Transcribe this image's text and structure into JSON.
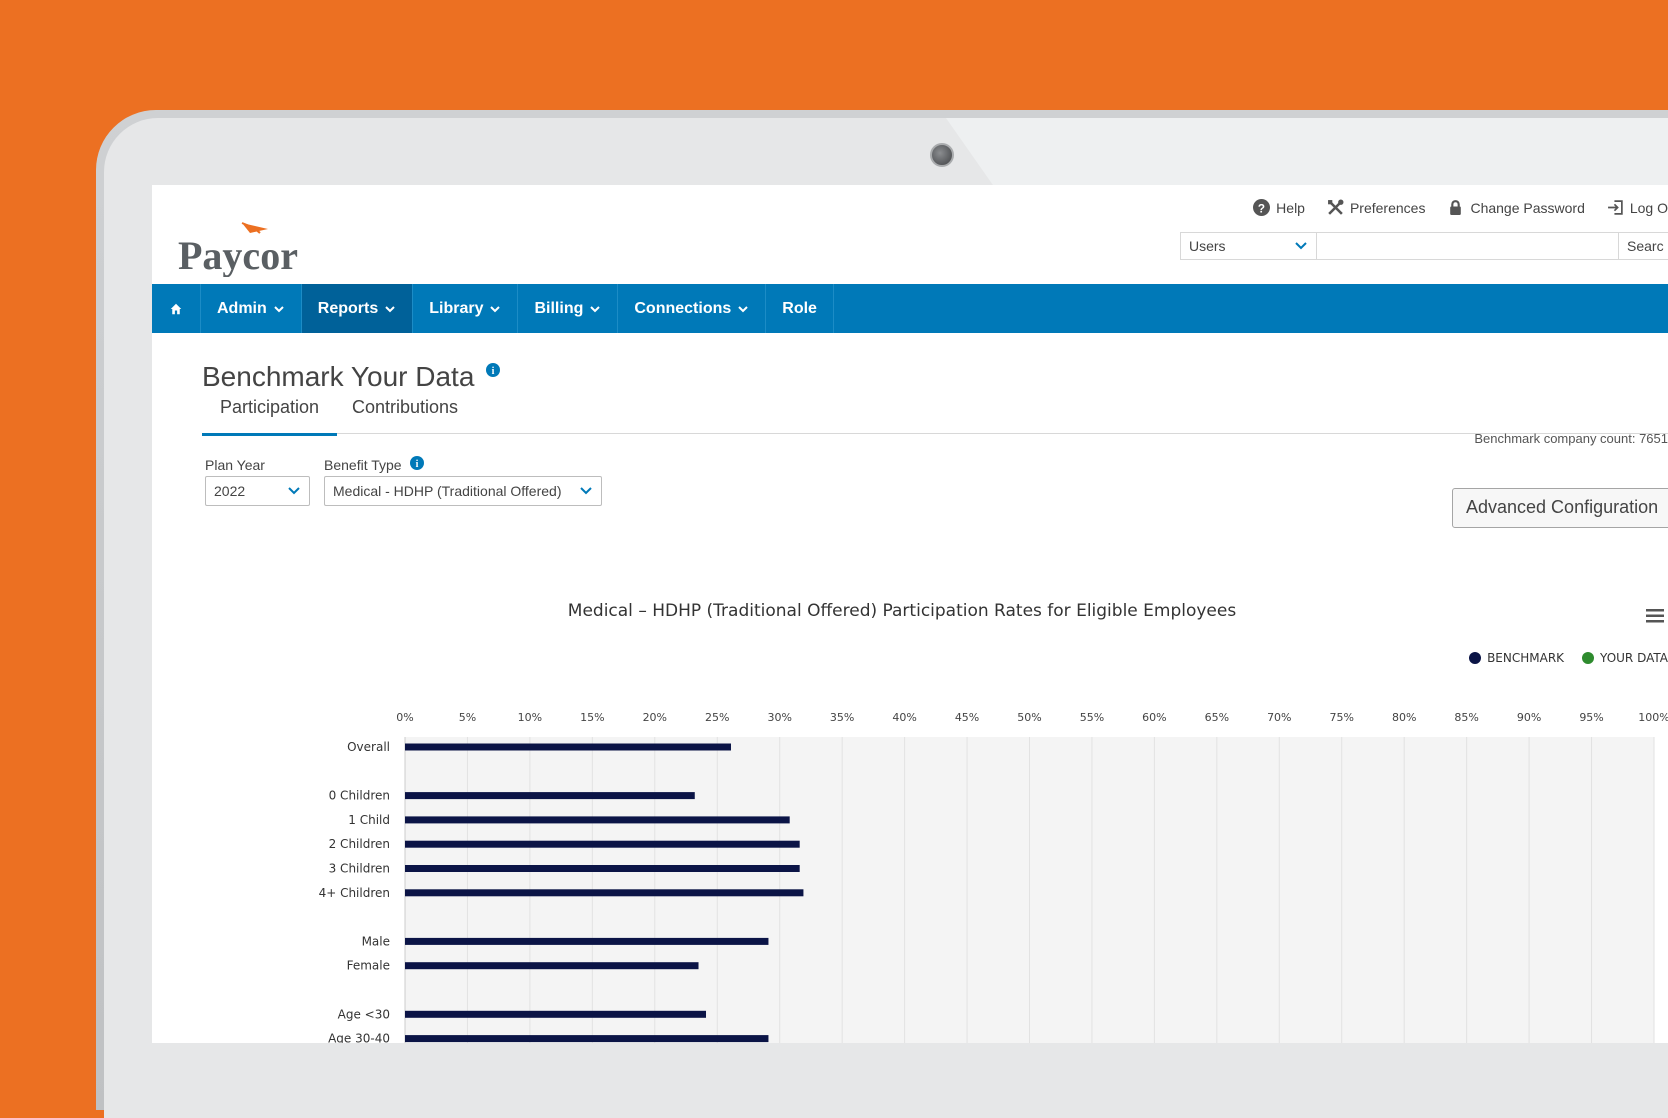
{
  "brand": {
    "name": "Paycor"
  },
  "top_links": [
    {
      "label": "Help",
      "icon": "help-icon"
    },
    {
      "label": "Preferences",
      "icon": "tools-icon"
    },
    {
      "label": "Change Password",
      "icon": "lock-icon"
    },
    {
      "label": "Log O",
      "icon": "logout-icon"
    }
  ],
  "search": {
    "scope": "Users",
    "button": "Searc"
  },
  "nav": {
    "items": [
      {
        "label": "Admin",
        "dropdown": true
      },
      {
        "label": "Reports",
        "dropdown": true,
        "active": true
      },
      {
        "label": "Library",
        "dropdown": true
      },
      {
        "label": "Billing",
        "dropdown": true
      },
      {
        "label": "Connections",
        "dropdown": true
      },
      {
        "label": "Role",
        "dropdown": false
      }
    ]
  },
  "page": {
    "title": "Benchmark Your Data",
    "tabs": [
      "Participation",
      "Contributions"
    ],
    "company_count": "Benchmark company count: 7651"
  },
  "filters": {
    "plan_year_label": "Plan Year",
    "plan_year_value": "2022",
    "benefit_type_label": "Benefit Type",
    "benefit_type_value": "Medical - HDHP (Traditional Offered)",
    "advanced_button": "Advanced Configuration"
  },
  "colors": {
    "accent": "#0079b8",
    "benchmark": "#0b1446",
    "your_data": "#2e8b2e"
  },
  "chart_data": {
    "type": "bar",
    "orientation": "horizontal",
    "title": "Medical – HDHP (Traditional Offered) Participation Rates for Eligible Employees",
    "legend": [
      "BENCHMARK",
      "YOUR DATA"
    ],
    "legend_position": "top-right",
    "x_ticks": [
      "0%",
      "5%",
      "10%",
      "15%",
      "20%",
      "25%",
      "30%",
      "35%",
      "40%",
      "45%",
      "50%",
      "55%",
      "60%",
      "65%",
      "70%",
      "75%",
      "80%",
      "85%",
      "90%",
      "95%",
      "100%"
    ],
    "xlim": [
      0,
      100
    ],
    "grid": true,
    "categories": [
      "Overall",
      "",
      "0 Children",
      "1 Child",
      "2 Children",
      "3 Children",
      "4+ Children",
      "",
      "Male",
      "Female",
      "",
      "Age <30",
      "Age 30-40"
    ],
    "series": [
      {
        "name": "BENCHMARK",
        "values": [
          26.1,
          null,
          23.2,
          30.8,
          31.6,
          31.6,
          31.9,
          null,
          29.1,
          23.5,
          null,
          24.1,
          29.1
        ]
      }
    ]
  }
}
